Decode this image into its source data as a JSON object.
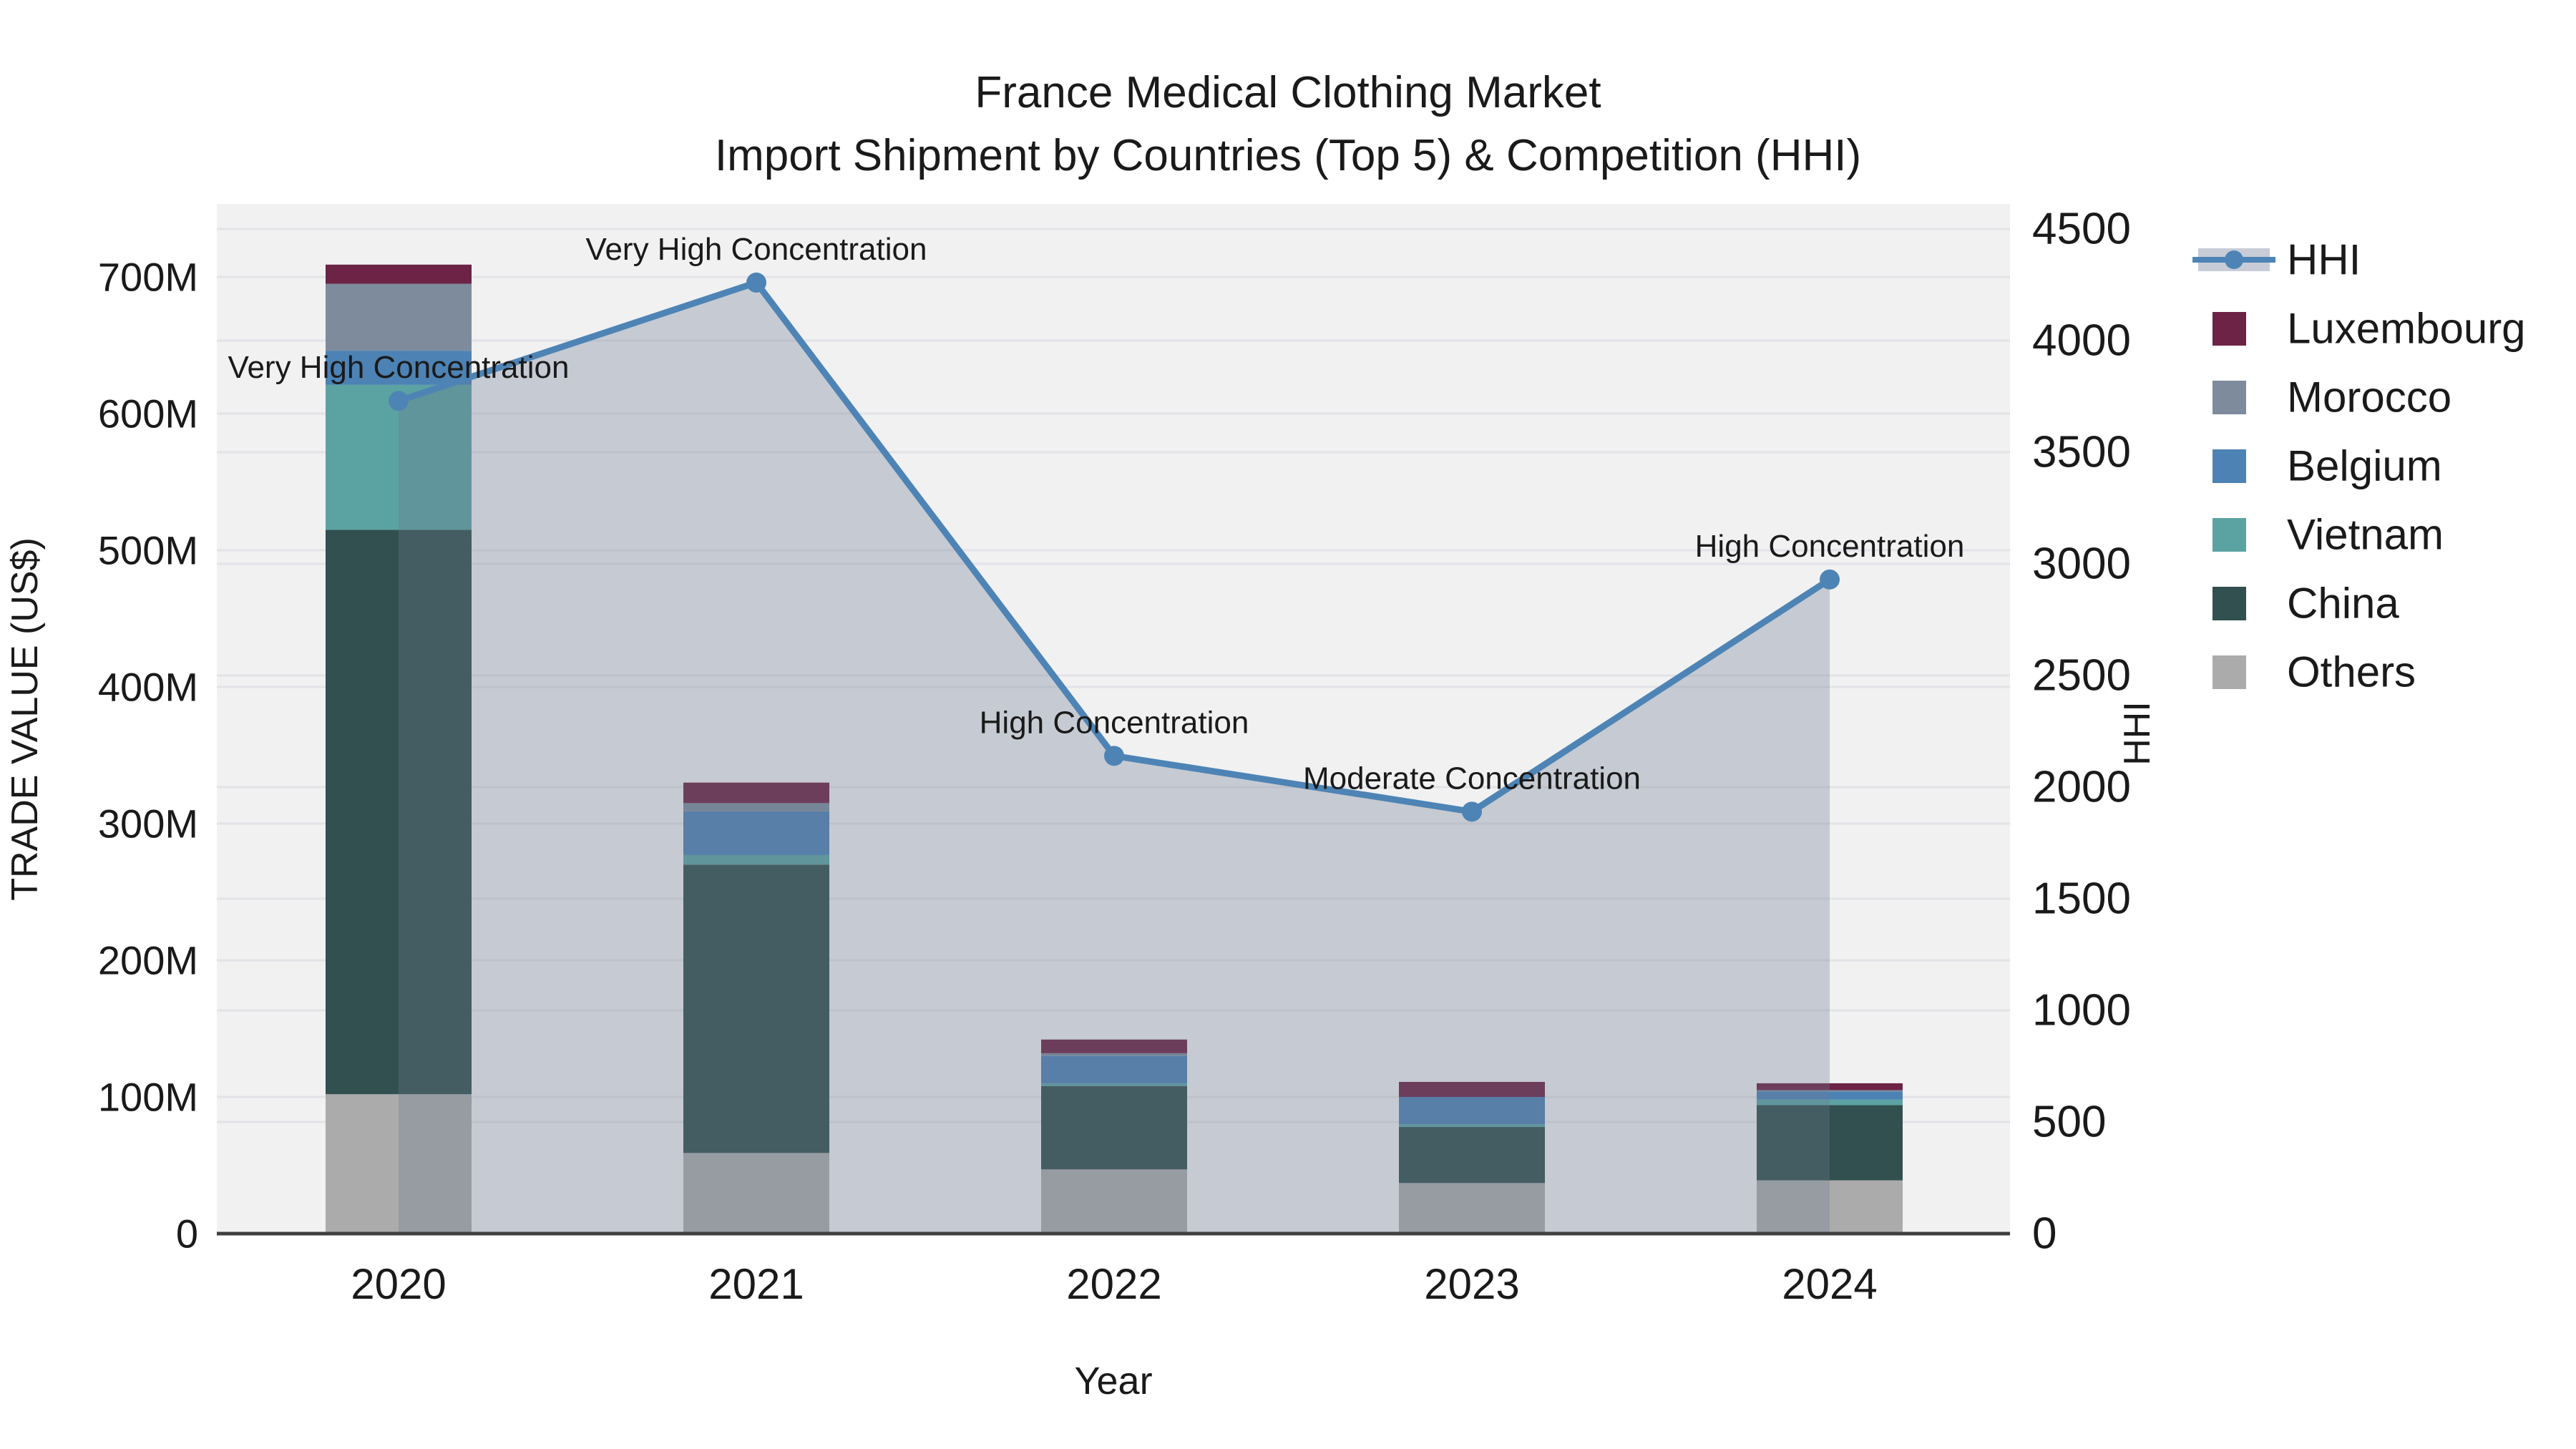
{
  "title": {
    "line1": "France Medical Clothing Market",
    "line2": "Import Shipment by Countries (Top 5) & Competition (HHI)"
  },
  "chart_data": {
    "type": "bar+line",
    "title": "France Medical Clothing Market — Import Shipment by Countries (Top 5) & Competition (HHI)",
    "categories": [
      "2020",
      "2021",
      "2022",
      "2023",
      "2024"
    ],
    "stack_unit": "million US$",
    "series": [
      {
        "name": "Others",
        "color": "#ababab",
        "values": [
          102,
          59,
          47,
          37,
          39
        ]
      },
      {
        "name": "China",
        "color": "#31504f",
        "values": [
          413,
          211,
          61,
          41,
          55
        ]
      },
      {
        "name": "Vietnam",
        "color": "#5ba3a2",
        "values": [
          106,
          7,
          2,
          2,
          4
        ]
      },
      {
        "name": "Belgium",
        "color": "#4d82b4",
        "values": [
          25,
          32,
          20,
          20,
          6
        ]
      },
      {
        "name": "Morocco",
        "color": "#7d8b9c",
        "values": [
          49,
          6,
          2,
          0,
          1
        ]
      },
      {
        "name": "Luxembourg",
        "color": "#6d2345",
        "values": [
          14,
          15,
          10,
          11,
          5
        ]
      }
    ],
    "bar_totals": [
      709,
      330,
      142,
      111,
      110
    ],
    "line_series": {
      "name": "HHI",
      "color": "#4e84b5",
      "area_fill": "rgba(110,122,142,0.32)",
      "values": [
        3730,
        4260,
        2140,
        1890,
        2930
      ],
      "annotations": [
        "Very High Concentration",
        "Very High Concentration",
        "High Concentration",
        "Moderate Concentration",
        "High Concentration"
      ]
    },
    "xlabel": "Year",
    "ylabel_left": "TRADE VALUE (US$)",
    "ylabel_right": "HHI",
    "y_left": {
      "ticks": [
        "0",
        "100M",
        "200M",
        "300M",
        "400M",
        "500M",
        "600M",
        "700M"
      ],
      "tick_values": [
        0,
        100,
        200,
        300,
        400,
        500,
        600,
        700
      ],
      "ylim": [
        0,
        753
      ]
    },
    "y_right": {
      "ticks": [
        "0",
        "500",
        "1000",
        "1500",
        "2000",
        "2500",
        "3000",
        "3500",
        "4000",
        "4500"
      ],
      "tick_values": [
        0,
        500,
        1000,
        1500,
        2000,
        2500,
        3000,
        3500,
        4000,
        4500
      ],
      "ylim": [
        0,
        4612
      ]
    },
    "grid": true,
    "legend_position": "right"
  },
  "legend": {
    "items": [
      {
        "label": "HHI",
        "type": "line",
        "color": "#4e84b5",
        "band": "#c7ccd7"
      },
      {
        "label": "Luxembourg",
        "type": "swatch",
        "color": "#6d2345"
      },
      {
        "label": "Morocco",
        "type": "swatch",
        "color": "#7d8b9c"
      },
      {
        "label": "Belgium",
        "type": "swatch",
        "color": "#4d82b4"
      },
      {
        "label": "Vietnam",
        "type": "swatch",
        "color": "#5ba3a2"
      },
      {
        "label": "China",
        "type": "swatch",
        "color": "#31504f"
      },
      {
        "label": "Others",
        "type": "swatch",
        "color": "#ababab"
      }
    ]
  },
  "colors": {
    "plot_bg": "#f1f1f2",
    "gridline": "#e2e3e7",
    "axis_line": "#3f3f3f",
    "text": "#1a1a1a"
  }
}
